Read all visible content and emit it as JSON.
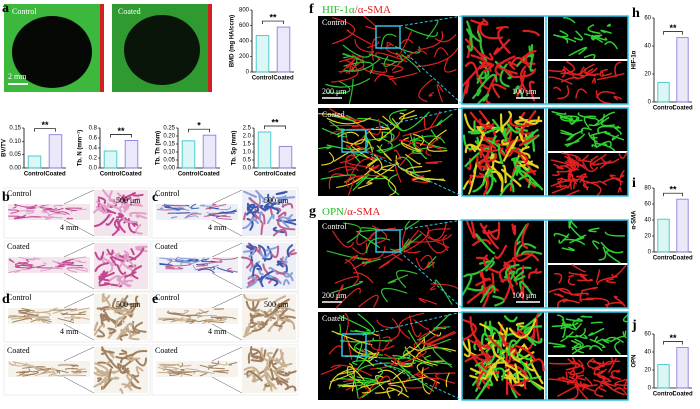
{
  "figure": {
    "a": {
      "letter": "a",
      "control": "Control",
      "coated": "Coated",
      "scale": "2 mm"
    },
    "b": {
      "letter": "b",
      "control": "Control",
      "coated": "Coated",
      "scale_low": "4 mm",
      "scale_high": "500 μm"
    },
    "c": {
      "letter": "c",
      "control": "Control",
      "coated": "Coated",
      "scale_low": "4 mm",
      "scale_high": "500 μm"
    },
    "d": {
      "letter": "d",
      "control": "Control",
      "coated": "Coated",
      "scale_low": "4 mm",
      "scale_high": "500 μm"
    },
    "e": {
      "letter": "e",
      "control": "Control",
      "coated": "Coated",
      "scale_low": "4 mm",
      "scale_high": "500 μm"
    },
    "f": {
      "letter": "f",
      "title": [
        "HIF-1α",
        "/α-SMA"
      ],
      "control": "Control",
      "coated": "Coated",
      "scale_low": "200 μm",
      "scale_high": "100 μm"
    },
    "g": {
      "letter": "g",
      "title": [
        "OPN",
        "/α-SMA"
      ],
      "control": "Control",
      "coated": "Coated",
      "scale_low": "200 μm",
      "scale_high": "100 μm"
    },
    "h": {
      "letter": "h"
    },
    "i": {
      "letter": "i"
    },
    "j": {
      "letter": "j"
    }
  },
  "chart_data": [
    {
      "type": "bar",
      "ylabel": "BMD (mg HA/ccm)",
      "categories": [
        "Control",
        "Coated"
      ],
      "values": [
        470,
        580
      ],
      "colors": [
        "#3cc8c8",
        "#8c7fe0"
      ],
      "ylim": [
        0,
        800
      ],
      "yticks": [
        0,
        200,
        400,
        600,
        800
      ],
      "significance": "**"
    },
    {
      "type": "bar",
      "ylabel": "BV/TV",
      "categories": [
        "Control",
        "Coated"
      ],
      "values": [
        0.045,
        0.125
      ],
      "colors": [
        "#3cc8c8",
        "#8c7fe0"
      ],
      "ylim": [
        0,
        0.15
      ],
      "yticks": [
        {
          "value": 0,
          "label": "0.00"
        },
        0.05,
        {
          "value": 0.1,
          "label": "0.10"
        },
        0.15
      ],
      "significance": "**"
    },
    {
      "type": "bar",
      "ylabel": "Tb. N (mm⁻¹)",
      "categories": [
        "Control",
        "Coated"
      ],
      "values": [
        0.34,
        0.55
      ],
      "colors": [
        "#3cc8c8",
        "#8c7fe0"
      ],
      "ylim": [
        0,
        0.8
      ],
      "yticks": [
        {
          "value": 0,
          "label": "0.0"
        },
        0.2,
        0.4,
        0.6,
        0.8
      ],
      "significance": "**"
    },
    {
      "type": "bar",
      "ylabel": "Tb. Th (mm)",
      "categories": [
        "Control",
        "Coated"
      ],
      "values": [
        0.17,
        0.205
      ],
      "colors": [
        "#3cc8c8",
        "#8c7fe0"
      ],
      "ylim": [
        0,
        0.25
      ],
      "yticks": [
        {
          "value": 0,
          "label": "0.00"
        },
        0.05,
        {
          "value": 0.1,
          "label": "0.10"
        },
        0.15,
        {
          "value": 0.2,
          "label": "0.20"
        },
        0.25
      ],
      "significance": "*"
    },
    {
      "type": "bar",
      "ylabel": "Tb. Sp (mm)",
      "categories": [
        "Control",
        "Coated"
      ],
      "values": [
        2.25,
        1.35
      ],
      "colors": [
        "#3cc8c8",
        "#8c7fe0"
      ],
      "ylim": [
        0,
        2.5
      ],
      "yticks": [
        {
          "value": 0,
          "label": "0.0"
        },
        0.5,
        {
          "value": 1,
          "label": "1.0"
        },
        1.5,
        {
          "value": 2,
          "label": "2.0"
        },
        2.5
      ],
      "significance": "**"
    },
    {
      "type": "bar",
      "ylabel": "HIF-1α",
      "categories": [
        "Control",
        "Coated"
      ],
      "values": [
        14,
        46
      ],
      "colors": [
        "#3cc8c8",
        "#8c7fe0"
      ],
      "ylim": [
        0,
        60
      ],
      "yticks": [
        0,
        20,
        40,
        60
      ],
      "significance": "**"
    },
    {
      "type": "bar",
      "ylabel": "α-SMA",
      "categories": [
        "Control",
        "Coated"
      ],
      "values": [
        41,
        66
      ],
      "colors": [
        "#3cc8c8",
        "#8c7fe0"
      ],
      "ylim": [
        0,
        80
      ],
      "yticks": [
        0,
        20,
        40,
        60,
        80
      ],
      "significance": "**"
    },
    {
      "type": "bar",
      "ylabel": "OPN",
      "categories": [
        "Control",
        "Coated"
      ],
      "values": [
        26,
        45
      ],
      "colors": [
        "#3cc8c8",
        "#8c7fe0"
      ],
      "ylim": [
        0,
        60
      ],
      "yticks": [
        0,
        20,
        40,
        60
      ],
      "significance": "**"
    }
  ]
}
